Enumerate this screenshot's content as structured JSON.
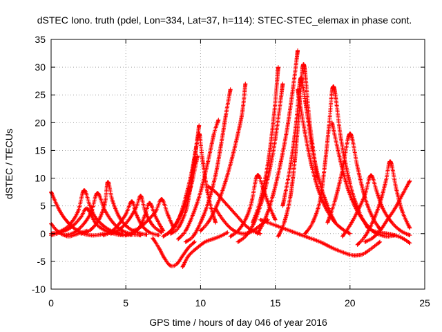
{
  "chart_data": {
    "type": "scatter",
    "title": "dSTEC Iono. truth (pdel, Lon=334, Lat=37, h=114): STEC-STEC_elemax in phase cont.",
    "xlabel": "GPS time / hours of day 046 of year 2016",
    "ylabel": "dSTEC  / TECUs",
    "xlim": [
      0,
      25
    ],
    "ylim": [
      -10,
      35
    ],
    "x_ticks": [
      0,
      5,
      10,
      15,
      20,
      25
    ],
    "y_ticks": [
      -10,
      -5,
      0,
      5,
      10,
      15,
      20,
      25,
      30,
      35
    ],
    "x_tick_labels": [
      "0",
      "5",
      "10",
      "15",
      "20",
      "25"
    ],
    "y_tick_labels": [
      "-10",
      "-5",
      "0",
      "5",
      "10",
      "15",
      "20",
      "25",
      "30",
      "35"
    ],
    "grid": true,
    "marker": "+",
    "color": "#ff0000",
    "series": [
      {
        "x": [
          0.0,
          0.6,
          1.2,
          1.8,
          2.4,
          3.0,
          3.6,
          4.2,
          4.8
        ],
        "y": [
          7.5,
          4.0,
          1.8,
          0.5,
          -0.2,
          -0.3,
          0.0,
          0.2,
          0.3
        ]
      },
      {
        "x": [
          0.0,
          0.3,
          0.6,
          0.9,
          1.2,
          1.6,
          2.0,
          2.4
        ],
        "y": [
          1.8,
          0.8,
          0.1,
          -0.3,
          -0.5,
          -0.2,
          0.2,
          0.5
        ]
      },
      {
        "x": [
          0.0,
          0.5,
          1.0,
          1.5,
          2.0,
          2.4,
          3.0,
          3.6,
          4.2,
          4.8,
          5.4
        ],
        "y": [
          -0.3,
          0.1,
          0.6,
          1.5,
          3.0,
          4.5,
          1.8,
          0.6,
          0.0,
          -0.3,
          -0.2
        ]
      },
      {
        "x": [
          0.0,
          0.6,
          1.2,
          1.8,
          2.2,
          2.6,
          3.0,
          3.6,
          4.2,
          4.8
        ],
        "y": [
          0.0,
          0.4,
          1.5,
          4.0,
          7.8,
          5.0,
          2.8,
          1.2,
          0.3,
          -0.1
        ]
      },
      {
        "x": [
          1.0,
          1.6,
          2.2,
          2.7,
          3.1,
          3.6,
          4.2,
          4.8,
          5.4,
          6.0
        ],
        "y": [
          -0.3,
          0.3,
          1.8,
          4.0,
          7.3,
          4.2,
          1.8,
          0.5,
          -0.1,
          -0.3
        ]
      },
      {
        "x": [
          2.0,
          2.6,
          3.2,
          3.6,
          3.8,
          4.1,
          4.6,
          5.2,
          5.8,
          6.4
        ],
        "y": [
          0.0,
          0.6,
          2.5,
          5.5,
          9.3,
          6.0,
          2.8,
          1.0,
          0.2,
          -0.2
        ]
      },
      {
        "x": [
          3.5,
          4.0,
          4.5,
          5.0,
          5.4,
          5.7,
          6.1,
          6.6,
          7.2
        ],
        "y": [
          -0.3,
          0.3,
          1.6,
          3.5,
          5.8,
          3.5,
          1.4,
          0.2,
          -0.3
        ]
      },
      {
        "x": [
          4.0,
          4.6,
          5.2,
          5.7,
          6.0,
          6.3,
          6.8,
          7.4
        ],
        "y": [
          0.0,
          0.8,
          2.5,
          4.8,
          6.8,
          4.0,
          1.5,
          0.2
        ]
      },
      {
        "x": [
          5.0,
          5.6,
          6.0,
          6.3,
          6.6,
          7.0,
          7.5
        ],
        "y": [
          -0.2,
          0.3,
          1.5,
          3.5,
          5.5,
          3.0,
          0.5
        ]
      },
      {
        "x": [
          5.5,
          6.0,
          6.5,
          7.0,
          7.4,
          7.8,
          8.2
        ],
        "y": [
          0.5,
          1.2,
          2.5,
          4.0,
          6.2,
          3.5,
          1.0
        ]
      },
      {
        "x": [
          6.8,
          7.2,
          7.6,
          8.0,
          8.4,
          8.8,
          9.2,
          9.6
        ],
        "y": [
          -0.8,
          -2.5,
          -4.5,
          -5.8,
          -5.5,
          -4.0,
          -2.5,
          -1.5
        ]
      },
      {
        "x": [
          7.5,
          8.0,
          8.5,
          9.0,
          9.4,
          9.8
        ],
        "y": [
          -0.5,
          0.5,
          2.5,
          5.5,
          9.0,
          14.0
        ]
      },
      {
        "x": [
          7.8,
          8.2,
          8.6,
          9.0,
          9.4,
          9.7,
          9.9
        ],
        "y": [
          0.0,
          1.0,
          3.0,
          6.5,
          11.0,
          15.5,
          19.5
        ]
      },
      {
        "x": [
          8.0,
          8.5,
          9.0,
          9.3,
          9.6,
          9.9,
          10.1,
          10.5,
          11.0
        ],
        "y": [
          0.0,
          1.0,
          4.0,
          8.0,
          13.5,
          18.0,
          14.0,
          7.0,
          2.0
        ]
      },
      {
        "x": [
          8.5,
          9.0,
          9.5,
          10.0,
          10.5,
          10.9,
          11.2
        ],
        "y": [
          -1.0,
          0.5,
          3.5,
          7.5,
          13.0,
          18.0,
          20.5
        ]
      },
      {
        "x": [
          9.0,
          9.5,
          10.0,
          10.5,
          11.0,
          11.4,
          11.7,
          12.0
        ],
        "y": [
          -1.5,
          -0.5,
          2.0,
          5.5,
          10.5,
          16.5,
          21.5,
          26.0
        ]
      },
      {
        "x": [
          8.8,
          9.2,
          9.8,
          10.3,
          10.8,
          11.3,
          11.8
        ],
        "y": [
          -6.0,
          -4.0,
          -2.5,
          -1.5,
          -1.0,
          -0.5,
          0.2
        ]
      },
      {
        "x": [
          10.0,
          10.5,
          11.0,
          11.5,
          12.0,
          12.5,
          12.8,
          13.0
        ],
        "y": [
          0.5,
          2.0,
          4.5,
          8.0,
          12.5,
          18.0,
          22.0,
          27.0
        ]
      },
      {
        "x": [
          10.5,
          11.0,
          11.5,
          12.0,
          12.5,
          13.0,
          13.5,
          14.0
        ],
        "y": [
          8.5,
          7.5,
          6.0,
          4.5,
          3.0,
          1.5,
          0.5,
          0.0
        ]
      },
      {
        "x": [
          11.0,
          11.5,
          12.0,
          12.5,
          13.0,
          13.5,
          14.0,
          14.5
        ],
        "y": [
          4.5,
          2.5,
          1.0,
          0.2,
          0.0,
          0.5,
          1.5,
          2.5
        ]
      },
      {
        "x": [
          12.0,
          12.5,
          13.0,
          13.4,
          13.8,
          14.2,
          14.6,
          15.0
        ],
        "y": [
          -0.5,
          0.5,
          2.5,
          5.5,
          10.5,
          8.0,
          5.0,
          2.5
        ]
      },
      {
        "x": [
          12.5,
          13.0,
          13.5,
          14.0,
          14.5,
          15.0,
          15.5
        ],
        "y": [
          -1.5,
          -0.5,
          1.5,
          5.0,
          10.0,
          17.0,
          27.0
        ]
      },
      {
        "x": [
          13.5,
          14.0,
          14.5,
          14.9,
          15.2
        ],
        "y": [
          2.0,
          6.0,
          12.5,
          21.0,
          30.0
        ]
      },
      {
        "x": [
          13.8,
          14.3,
          14.8,
          15.3,
          15.8,
          16.2,
          16.5
        ],
        "y": [
          0.0,
          2.5,
          6.5,
          12.0,
          19.0,
          26.5,
          33.0
        ]
      },
      {
        "x": [
          15.2,
          15.6,
          16.0,
          16.3,
          16.6,
          16.9,
          17.3,
          17.8
        ],
        "y": [
          -0.5,
          2.0,
          6.5,
          13.0,
          22.0,
          30.5,
          20.0,
          10.0
        ]
      },
      {
        "x": [
          15.5,
          16.0,
          16.4,
          16.7,
          17.0,
          17.5,
          18.0,
          18.5,
          19.0
        ],
        "y": [
          5.0,
          12.0,
          20.0,
          28.0,
          24.0,
          15.0,
          9.0,
          5.0,
          2.0
        ]
      },
      {
        "x": [
          16.5,
          17.0,
          17.5,
          18.0,
          18.5,
          19.0,
          19.5,
          20.0
        ],
        "y": [
          26.0,
          18.0,
          11.5,
          7.0,
          4.0,
          2.0,
          0.8,
          0.0
        ]
      },
      {
        "x": [
          14.0,
          15.0,
          16.0,
          17.0,
          18.0,
          19.0,
          20.0,
          20.5,
          21.0,
          22.0
        ],
        "y": [
          2.5,
          1.5,
          0.5,
          -0.5,
          -1.5,
          -2.8,
          -3.8,
          -3.9,
          -3.5,
          -1.5
        ]
      },
      {
        "x": [
          17.0,
          17.5,
          18.0,
          18.3,
          18.6,
          18.9,
          19.4,
          20.0,
          20.6,
          21.2
        ],
        "y": [
          0.0,
          2.0,
          6.0,
          12.0,
          19.5,
          26.5,
          17.0,
          9.0,
          4.0,
          1.0
        ]
      },
      {
        "x": [
          18.5,
          19.0,
          19.5,
          20.0,
          20.5,
          21.0,
          21.5,
          22.0
        ],
        "y": [
          2.0,
          6.0,
          11.5,
          18.0,
          12.0,
          6.5,
          3.0,
          0.8
        ]
      },
      {
        "x": [
          18.8,
          19.2,
          19.6,
          20.0,
          20.5,
          21.0,
          21.5,
          22.0,
          22.5,
          23.0
        ],
        "y": [
          20.0,
          15.0,
          10.5,
          7.0,
          4.0,
          2.0,
          0.5,
          -0.2,
          -0.5,
          -0.3
        ]
      },
      {
        "x": [
          19.5,
          20.0,
          20.5,
          21.0,
          21.4,
          21.8,
          22.2,
          22.8,
          23.4,
          24.0
        ],
        "y": [
          -0.5,
          1.5,
          4.0,
          7.0,
          10.5,
          7.5,
          4.5,
          2.0,
          0.5,
          -0.3
        ]
      },
      {
        "x": [
          20.5,
          21.0,
          21.5,
          22.0,
          22.4,
          22.7,
          23.1,
          23.5,
          24.0
        ],
        "y": [
          -2.0,
          -0.5,
          2.0,
          5.5,
          9.5,
          13.0,
          8.0,
          4.0,
          1.0
        ]
      },
      {
        "x": [
          21.0,
          21.5,
          22.0,
          22.5,
          23.0,
          23.5,
          24.0
        ],
        "y": [
          -1.5,
          -0.8,
          0.5,
          2.5,
          4.5,
          7.0,
          9.5
        ]
      },
      {
        "x": [
          21.5,
          22.0,
          22.5,
          23.0,
          23.5,
          24.0
        ],
        "y": [
          0.5,
          0.2,
          0.0,
          -0.3,
          -0.8,
          -1.7
        ]
      }
    ]
  }
}
